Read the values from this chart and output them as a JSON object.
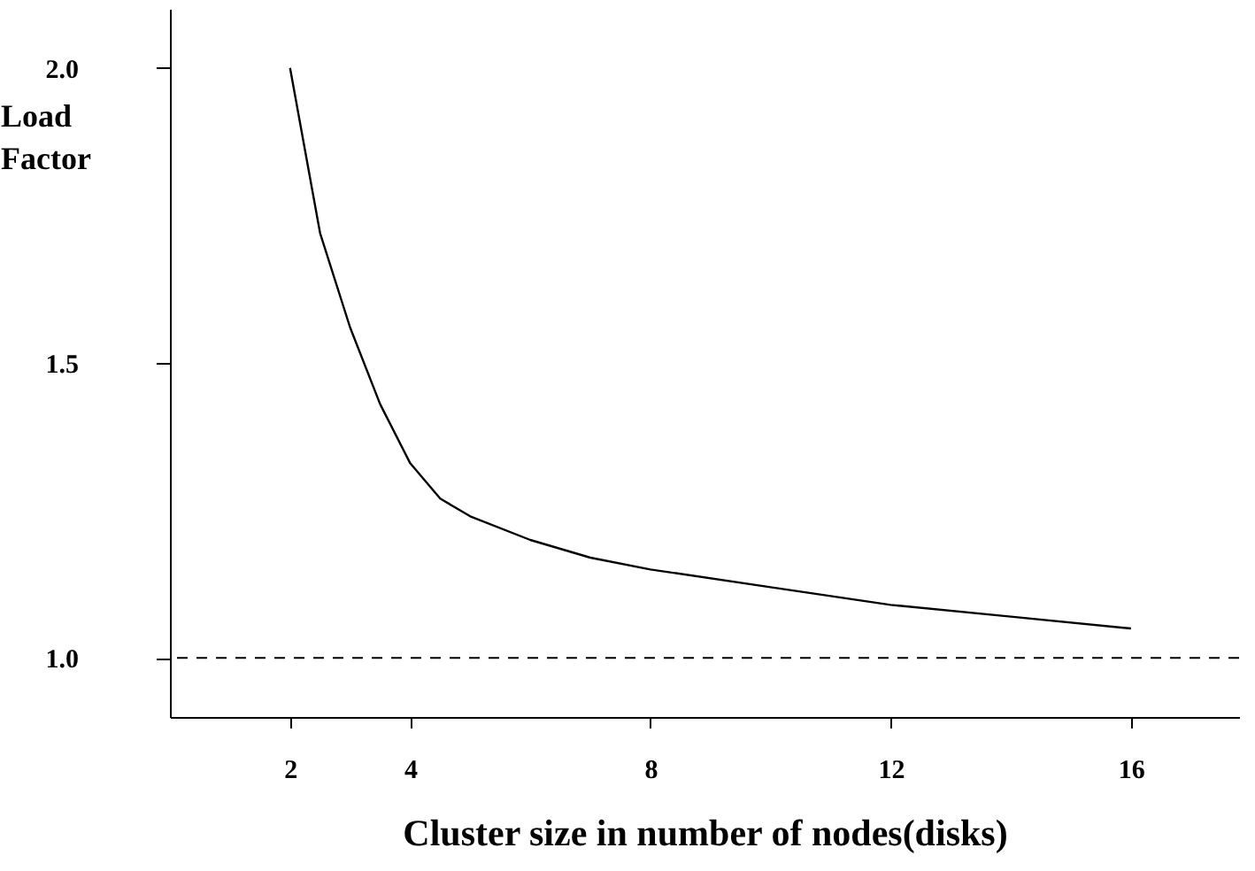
{
  "chart_data": {
    "type": "line",
    "xlabel": "Cluster size in number of nodes(disks)",
    "ylabel": "Load Factor",
    "x": [
      2,
      2.5,
      3,
      3.5,
      4,
      4.5,
      5,
      6,
      7,
      8,
      10,
      12,
      14,
      16
    ],
    "series": [
      {
        "color": "#000000",
        "values": [
          2.0,
          1.72,
          1.56,
          1.43,
          1.33,
          1.27,
          1.24,
          1.2,
          1.17,
          1.15,
          1.12,
          1.09,
          1.07,
          1.05
        ]
      }
    ],
    "xlim": [
      0,
      17.8
    ],
    "xticks": [
      2,
      4,
      8,
      12,
      16
    ],
    "ylim": [
      0.9,
      2.1
    ],
    "yticks": [
      {
        "value": 1,
        "label": "1.0"
      },
      1.5,
      {
        "value": 2,
        "label": "2.0"
      }
    ],
    "ref_lines": [
      {
        "axis": "y",
        "value": 1,
        "color": "#000000",
        "line_style": "dashed"
      }
    ],
    "grid": false,
    "marker": "none",
    "line_style": "solid"
  }
}
